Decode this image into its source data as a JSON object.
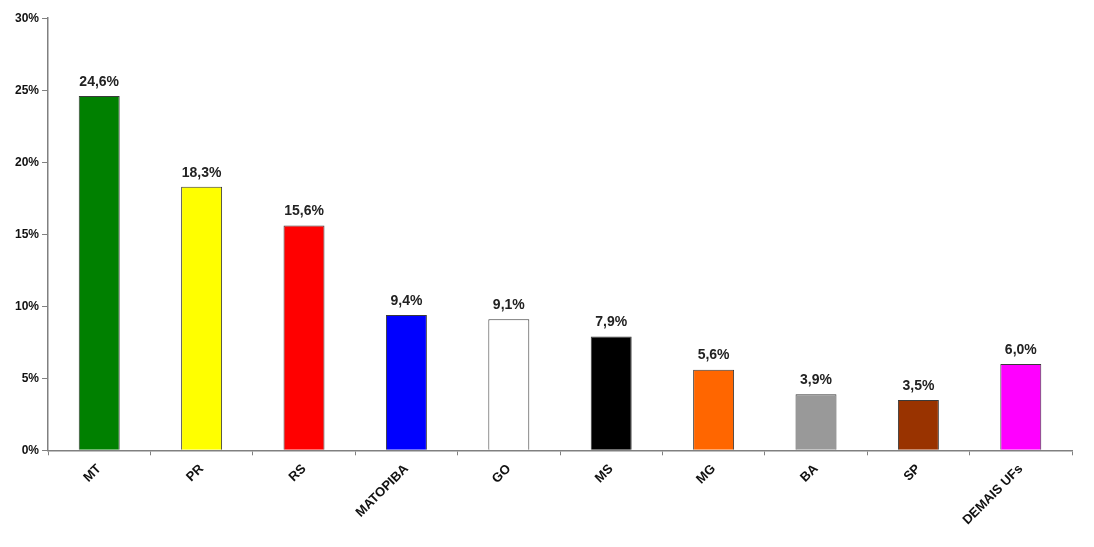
{
  "chart_data": {
    "type": "bar",
    "categories": [
      "MT",
      "PR",
      "RS",
      "MATOPIBA",
      "GO",
      "MS",
      "MG",
      "BA",
      "SP",
      "DEMAIS UFs"
    ],
    "values": [
      24.6,
      18.3,
      15.6,
      9.4,
      9.1,
      7.9,
      5.6,
      3.9,
      3.5,
      6.0
    ],
    "colors": [
      "#008000",
      "#ffff00",
      "#ff0000",
      "#0000ff",
      "#ffffff",
      "#000000",
      "#ff6600",
      "#999999",
      "#993300",
      "#ff00ff"
    ],
    "value_labels": [
      "24,6%",
      "18,3%",
      "15,6%",
      "9,4%",
      "9,1%",
      "7,9%",
      "5,6%",
      "3,9%",
      "3,5%",
      "6,0%"
    ],
    "ylim": [
      0,
      30
    ],
    "yticks": [
      {
        "value": 0,
        "label": "0%"
      },
      {
        "value": 5,
        "label": "5%"
      },
      {
        "value": 10,
        "label": "10%"
      },
      {
        "value": 15,
        "label": "15%"
      },
      {
        "value": 20,
        "label": "20%"
      },
      {
        "value": 25,
        "label": "25%"
      },
      {
        "value": 30,
        "label": "30%"
      }
    ]
  }
}
